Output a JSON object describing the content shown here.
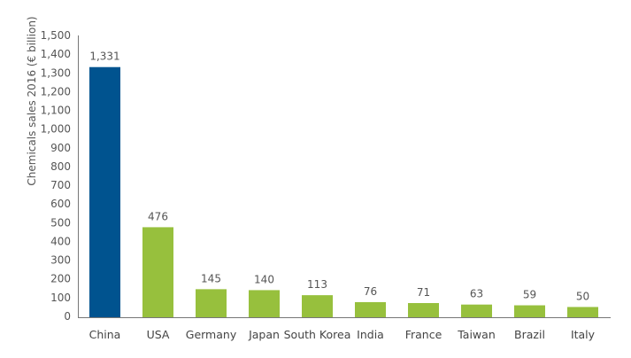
{
  "chart_data": {
    "type": "bar",
    "title": "",
    "xlabel": "",
    "ylabel": "Chemicals sales 2016 (€ billion)",
    "ylim": [
      0,
      1500
    ],
    "yticks": [
      "0",
      "100",
      "200",
      "300",
      "400",
      "500",
      "600",
      "700",
      "800",
      "900",
      "1,000",
      "1,100",
      "1,200",
      "1,300",
      "1,400",
      "1,500"
    ],
    "grid": false,
    "categories": [
      "China",
      "USA",
      "Germany",
      "Japan",
      "South Korea",
      "India",
      "France",
      "Taiwan",
      "Brazil",
      "Italy"
    ],
    "values": [
      1331,
      476,
      145,
      140,
      113,
      76,
      71,
      63,
      59,
      50
    ],
    "data_labels": [
      "1,331",
      "476",
      "145",
      "140",
      "113",
      "76",
      "71",
      "63",
      "59",
      "50"
    ],
    "colors": {
      "highlight": "#00538f",
      "default": "#97c03d",
      "axis": "#777777",
      "text": "#555555"
    },
    "highlight_index": 0
  }
}
